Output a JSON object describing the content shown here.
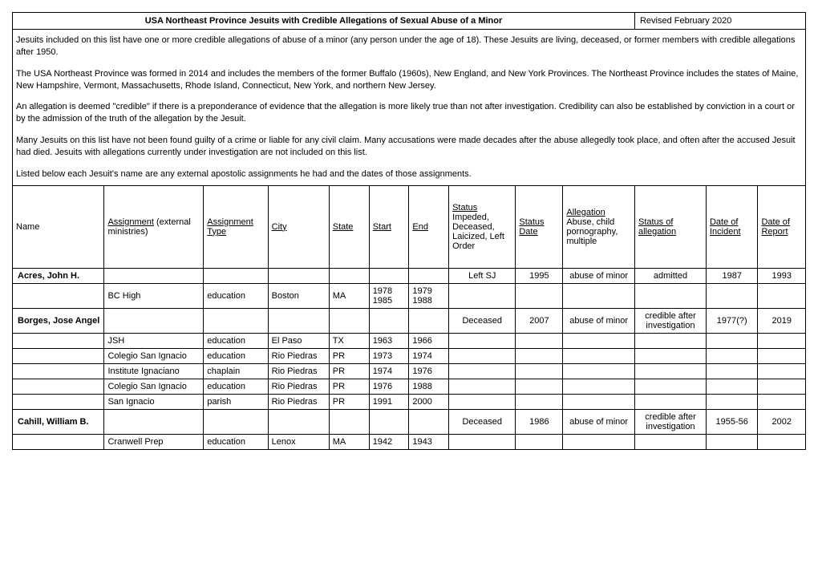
{
  "title": "USA Northeast Province Jesuits with Credible Allegations of Sexual Abuse of a Minor",
  "revised": "Revised February 2020",
  "intro": {
    "p1": "Jesuits included on this list have one or more credible allegations of abuse of a minor (any person under the age of 18). These Jesuits are living, deceased, or former members with credible allegations after 1950.",
    "p2": "The USA Northeast Province was formed in 2014 and includes the members of the former Buffalo (1960s), New England, and New York Provinces. The Northeast Province includes the states of Maine, New Hampshire, Vermont, Massachusetts, Rhode Island, Connecticut, New York, and northern New Jersey.",
    "p3": "An allegation is deemed \"credible\" if there is a preponderance of evidence that the allegation is more likely true than not after investigation. Credibility can also be established by conviction in a court or by the admission of the truth of the allegation by the Jesuit.",
    "p4": "Many Jesuits on this list have not been found guilty of a crime or liable for any civil claim. Many accusations were made decades after the abuse allegedly took place, and often after the accused Jesuit had died. Jesuits with allegations currently under investigation are not included on this list.",
    "p5": "Listed below each Jesuit's name are any external apostolic assignments he had and the dates of those assignments."
  },
  "headers": {
    "name": "Name",
    "assignment_u": "Assignment",
    "assignment_rest": " (external ministries)",
    "assignment_type_l1": "Assignment",
    "assignment_type_l2": "Type",
    "city": "City",
    "state": "State",
    "start": "Start",
    "end": "End",
    "status_l1": "Status",
    "status_rest": "Impeded, Deceased, Laicized, Left Order",
    "status_date_l1": "Status",
    "status_date_l2": "Date",
    "allegation_l1": "Allegation",
    "allegation_rest": "Abuse, child pornography, multiple",
    "status_alleg_l1": "Status of",
    "status_alleg_l2": "allegation",
    "date_inc_l1": "Date of",
    "date_inc_l2": "Incident",
    "date_rep_l1": "Date of",
    "date_rep_l2": "Report"
  },
  "rows": [
    {
      "name": "Acres, John H.",
      "assignment": "",
      "type": "",
      "city": "",
      "state": "",
      "start": "",
      "end": "",
      "status": "Left SJ",
      "status_date": "1995",
      "allegation": "abuse of minor",
      "status_alleg": "admitted",
      "date_inc": "1987",
      "date_rep": "1993",
      "bold": true
    },
    {
      "name": "",
      "assignment": "BC High",
      "type": "education",
      "city": "Boston",
      "state": "MA",
      "start": "1978 1985",
      "end": "1979 1988",
      "status": "",
      "status_date": "",
      "allegation": "",
      "status_alleg": "",
      "date_inc": "",
      "date_rep": "",
      "bold": false
    },
    {
      "name": "Borges, Jose Angel",
      "assignment": "",
      "type": "",
      "city": "",
      "state": "",
      "start": "",
      "end": "",
      "status": "Deceased",
      "status_date": "2007",
      "allegation": "abuse of minor",
      "status_alleg": "credible after investigation",
      "date_inc": "1977(?)",
      "date_rep": "2019",
      "bold": true
    },
    {
      "name": "",
      "assignment": "JSH",
      "type": "education",
      "city": "El Paso",
      "state": "TX",
      "start": "1963",
      "end": "1966",
      "status": "",
      "status_date": "",
      "allegation": "",
      "status_alleg": "",
      "date_inc": "",
      "date_rep": "",
      "bold": false
    },
    {
      "name": "",
      "assignment": "Colegio San Ignacio",
      "type": "education",
      "city": "Rio Piedras",
      "state": "PR",
      "start": "1973",
      "end": "1974",
      "status": "",
      "status_date": "",
      "allegation": "",
      "status_alleg": "",
      "date_inc": "",
      "date_rep": "",
      "bold": false
    },
    {
      "name": "",
      "assignment": "Institute Ignaciano",
      "type": "chaplain",
      "city": "Rio Piedras",
      "state": "PR",
      "start": "1974",
      "end": "1976",
      "status": "",
      "status_date": "",
      "allegation": "",
      "status_alleg": "",
      "date_inc": "",
      "date_rep": "",
      "bold": false
    },
    {
      "name": "",
      "assignment": "Colegio San Ignacio",
      "type": "education",
      "city": "Rio Piedras",
      "state": "PR",
      "start": "1976",
      "end": "1988",
      "status": "",
      "status_date": "",
      "allegation": "",
      "status_alleg": "",
      "date_inc": "",
      "date_rep": "",
      "bold": false
    },
    {
      "name": "",
      "assignment": "San Ignacio",
      "type": "parish",
      "city": "Rio Piedras",
      "state": "PR",
      "start": "1991",
      "end": "2000",
      "status": "",
      "status_date": "",
      "allegation": "",
      "status_alleg": "",
      "date_inc": "",
      "date_rep": "",
      "bold": false
    },
    {
      "name": "Cahill, William B.",
      "assignment": "",
      "type": "",
      "city": "",
      "state": "",
      "start": "",
      "end": "",
      "status": "Deceased",
      "status_date": "1986",
      "allegation": "abuse of minor",
      "status_alleg": "credible after investigation",
      "date_inc": "1955-56",
      "date_rep": "2002",
      "bold": true
    },
    {
      "name": "",
      "assignment": "Cranwell Prep",
      "type": "education",
      "city": "Lenox",
      "state": "MA",
      "start": "1942",
      "end": "1943",
      "status": "",
      "status_date": "",
      "allegation": "",
      "status_alleg": "",
      "date_inc": "",
      "date_rep": "",
      "bold": false
    }
  ]
}
